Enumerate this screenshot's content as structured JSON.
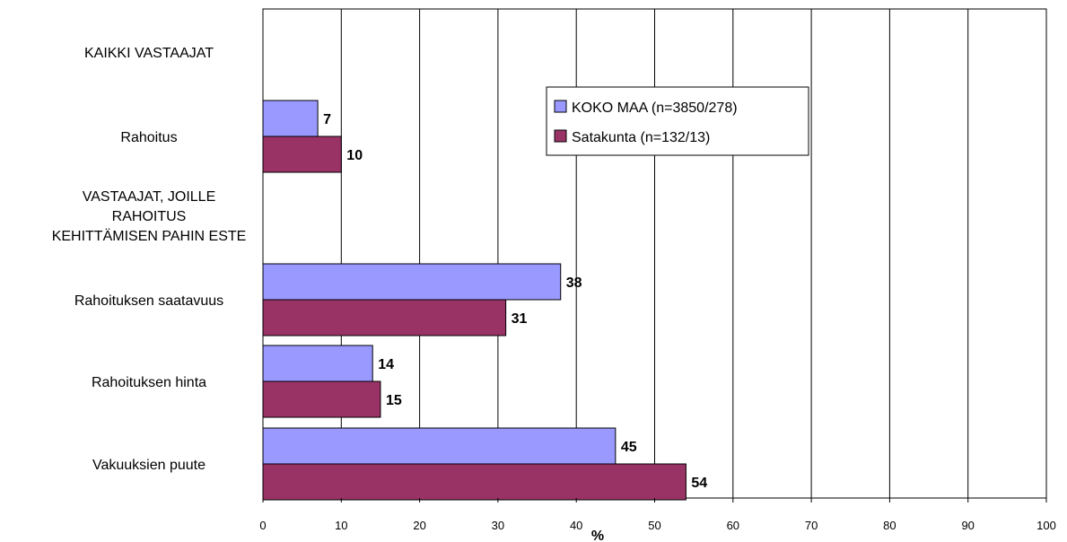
{
  "chart_data": {
    "type": "bar",
    "orientation": "horizontal",
    "xlabel": "%",
    "xlim": [
      0,
      100
    ],
    "xticks": [
      0,
      10,
      20,
      30,
      40,
      50,
      60,
      70,
      80,
      90,
      100
    ],
    "grid": "vertical",
    "legend_position": "top-right",
    "categories": [
      "KAIKKI VASTAAJAT",
      "Rahoitus",
      "VASTAAJAT, JOILLE RAHOITUS KEHITTÄMISEN PAHIN ESTE",
      "Rahoituksen saatavuus",
      "Rahoituksen hinta",
      "Vakuuksien puute"
    ],
    "category_lines": [
      [
        "KAIKKI VASTAAJAT"
      ],
      [
        "Rahoitus"
      ],
      [
        "VASTAAJAT, JOILLE",
        "RAHOITUS",
        "KEHITTÄMISEN PAHIN ESTE"
      ],
      [
        "Rahoituksen saatavuus"
      ],
      [
        "Rahoituksen hinta"
      ],
      [
        "Vakuuksien puute"
      ]
    ],
    "series": [
      {
        "name": "KOKO MAA (n=3850/278)",
        "color": "#9999ff",
        "values": [
          null,
          7,
          null,
          38,
          14,
          45
        ]
      },
      {
        "name": "Satakunta (n=132/13)",
        "color": "#993366",
        "values": [
          null,
          10,
          null,
          31,
          15,
          54
        ]
      }
    ]
  }
}
